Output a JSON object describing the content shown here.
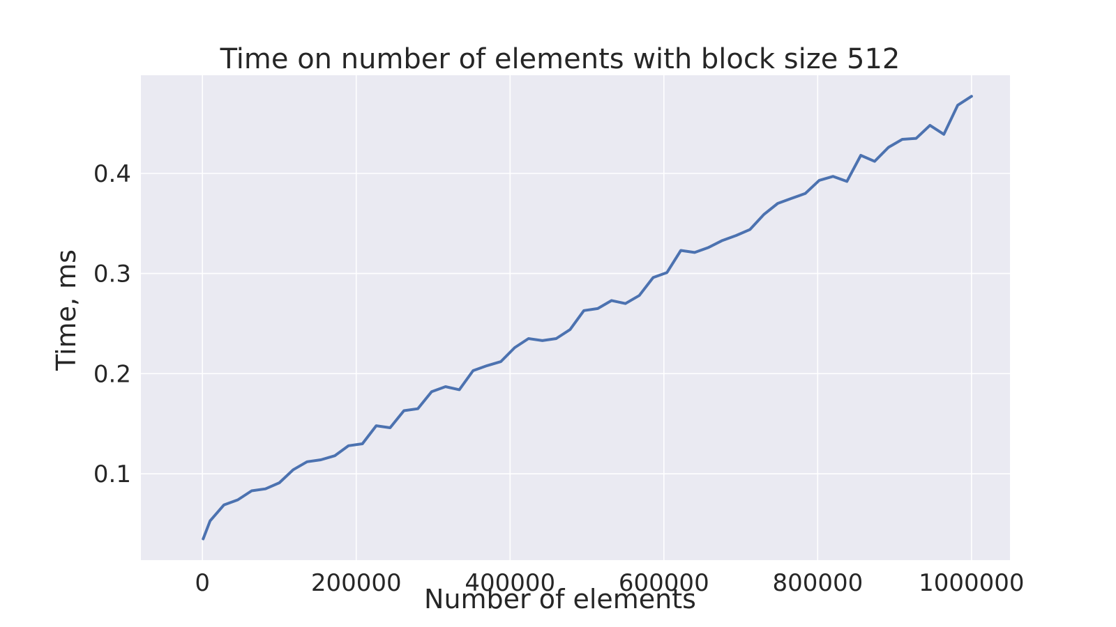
{
  "chart_data": {
    "type": "line",
    "title": "Time on number of elements with block size 512",
    "xlabel": "Number of elements",
    "ylabel": "Time, ms",
    "xlim": [
      -80000,
      1050000
    ],
    "ylim": [
      0.0138,
      0.498
    ],
    "x_ticks": [
      0,
      200000,
      400000,
      600000,
      800000,
      1000000
    ],
    "x_tick_labels": [
      "0",
      "200000",
      "400000",
      "600000",
      "800000",
      "1000000"
    ],
    "y_ticks": [
      0.1,
      0.2,
      0.3,
      0.4
    ],
    "y_tick_labels": [
      "0.1",
      "0.2",
      "0.3",
      "0.4"
    ],
    "grid": true,
    "plot_background": "#eaeaf2",
    "series": [
      {
        "color": "#4c72b0",
        "x": [
          1000,
          10000,
          28000,
          46000,
          64000,
          82000,
          100000,
          118000,
          136000,
          154000,
          172000,
          190000,
          208000,
          226000,
          244000,
          262000,
          280000,
          298000,
          316000,
          334000,
          352000,
          370000,
          388000,
          406000,
          424000,
          442000,
          460000,
          478000,
          496000,
          514000,
          532000,
          550000,
          568000,
          586000,
          604000,
          622000,
          640000,
          658000,
          676000,
          694000,
          712000,
          730000,
          748000,
          766000,
          784000,
          802000,
          820000,
          838000,
          856000,
          874000,
          892000,
          910000,
          928000,
          946000,
          964000,
          982000,
          1000000
        ],
        "values": [
          0.035,
          0.053,
          0.069,
          0.074,
          0.083,
          0.085,
          0.091,
          0.104,
          0.112,
          0.114,
          0.118,
          0.128,
          0.13,
          0.148,
          0.146,
          0.163,
          0.165,
          0.182,
          0.187,
          0.184,
          0.203,
          0.208,
          0.212,
          0.226,
          0.235,
          0.233,
          0.235,
          0.244,
          0.263,
          0.265,
          0.273,
          0.27,
          0.278,
          0.296,
          0.301,
          0.323,
          0.321,
          0.326,
          0.333,
          0.338,
          0.344,
          0.359,
          0.37,
          0.375,
          0.38,
          0.393,
          0.397,
          0.392,
          0.418,
          0.412,
          0.426,
          0.434,
          0.435,
          0.448,
          0.439,
          0.468,
          0.477
        ]
      }
    ]
  }
}
